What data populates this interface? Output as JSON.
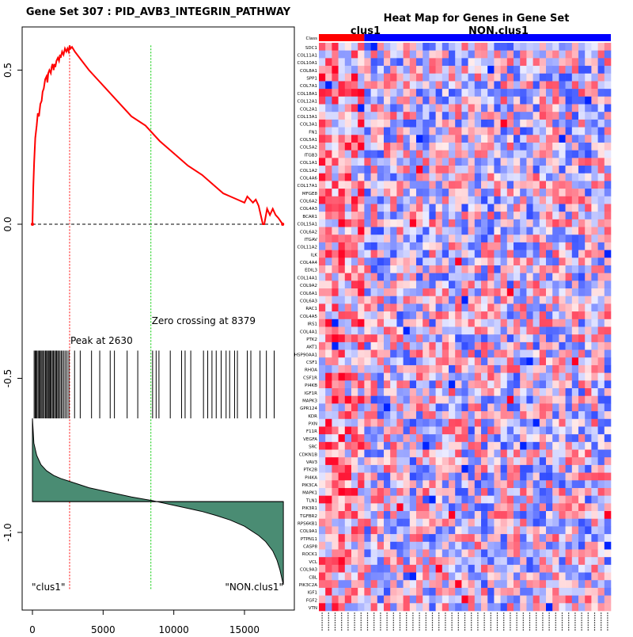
{
  "left_title": "Gene Set  307 : PID_AVB3_INTEGRIN_PATHWAY",
  "right_title": "Heat Map for Genes in Gene Set",
  "colors": {
    "es_line": "#ff0000",
    "zero_line": "#000000",
    "peak_line": "#ff0000",
    "zero_cross_line": "#00cc00",
    "ranked_fill": "#4a8c73",
    "clus1_bar": "#ff0000",
    "nonclus1_bar": "#0000ff"
  },
  "chart_data": [
    {
      "type": "line",
      "name": "enrichment-plot",
      "xlim": [
        0,
        17800
      ],
      "ylim": [
        -1.18,
        0.68
      ],
      "x_ticks": [
        0,
        5000,
        10000,
        15000
      ],
      "y_ticks": [
        0.5,
        0.0,
        -0.5,
        -1.0
      ],
      "y_tick_labels": [
        "0.5",
        "0.0",
        "-0.5",
        "-1.0"
      ],
      "es_curve": {
        "x": [
          0,
          60,
          120,
          200,
          300,
          380,
          460,
          560,
          650,
          720,
          800,
          900,
          1000,
          1060,
          1120,
          1200,
          1300,
          1360,
          1420,
          1500,
          1560,
          1620,
          1700,
          1800,
          1880,
          1950,
          2000,
          2100,
          2200,
          2300,
          2400,
          2480,
          2560,
          2630,
          2700,
          2800,
          3000,
          3500,
          4000,
          5000,
          6000,
          7000,
          8000,
          9000,
          10000,
          11000,
          12000,
          13000,
          13500,
          14000,
          14500,
          15000,
          15200,
          15400,
          15600,
          15800,
          16000,
          16100,
          16200,
          16300,
          16400,
          16600,
          16800,
          17000,
          17200,
          17400,
          17700
        ],
        "y": [
          0.0,
          0.12,
          0.2,
          0.28,
          0.32,
          0.36,
          0.35,
          0.39,
          0.4,
          0.43,
          0.44,
          0.47,
          0.48,
          0.46,
          0.49,
          0.5,
          0.49,
          0.51,
          0.52,
          0.5,
          0.52,
          0.51,
          0.53,
          0.54,
          0.53,
          0.55,
          0.54,
          0.56,
          0.55,
          0.57,
          0.56,
          0.57,
          0.56,
          0.58,
          0.57,
          0.575,
          0.56,
          0.53,
          0.5,
          0.45,
          0.4,
          0.35,
          0.32,
          0.27,
          0.23,
          0.19,
          0.16,
          0.12,
          0.1,
          0.09,
          0.08,
          0.07,
          0.09,
          0.08,
          0.07,
          0.08,
          0.06,
          0.04,
          0.02,
          0.0,
          0.0,
          0.05,
          0.03,
          0.05,
          0.03,
          0.02,
          0.0
        ]
      },
      "peak": {
        "x": 2630,
        "label": "Peak at 2630"
      },
      "zero_crossing": {
        "x": 8379,
        "label": "Zero crossing at 8379"
      },
      "hits": [
        120,
        190,
        250,
        320,
        400,
        470,
        540,
        610,
        680,
        760,
        840,
        920,
        990,
        1060,
        1130,
        1190,
        1260,
        1330,
        1410,
        1480,
        1560,
        1640,
        1710,
        1790,
        1860,
        1950,
        2040,
        2130,
        2230,
        2340,
        2450,
        2580,
        2980,
        3380,
        4180,
        4760,
        5500,
        5800,
        6700,
        7450,
        8500,
        8750,
        8950,
        9750,
        10550,
        10800,
        11200,
        12100,
        12400,
        12700,
        13000,
        13350,
        13700,
        13950,
        14300,
        14500,
        15200,
        15450,
        16100,
        16550,
        17100
      ],
      "ranked_metric": {
        "x": [
          0,
          100,
          300,
          600,
          1000,
          1500,
          2000,
          3000,
          4000,
          5000,
          6000,
          7000,
          8000,
          8379,
          9000,
          10000,
          11000,
          12000,
          13000,
          14000,
          15000,
          16000,
          16500,
          17000,
          17300,
          17500,
          17650,
          17750
        ],
        "y": [
          -0.63,
          -0.71,
          -0.75,
          -0.78,
          -0.8,
          -0.815,
          -0.825,
          -0.84,
          -0.855,
          -0.865,
          -0.875,
          -0.885,
          -0.893,
          -0.896,
          -0.902,
          -0.912,
          -0.922,
          -0.932,
          -0.945,
          -0.96,
          -0.98,
          -1.01,
          -1.03,
          -1.06,
          -1.09,
          -1.12,
          -1.15,
          -1.17
        ]
      },
      "baseline_y": -0.9,
      "corner_labels": {
        "left": "\"clus1\"",
        "right": "\"NON.clus1\""
      }
    },
    {
      "type": "heatmap",
      "name": "gene-heatmap",
      "class_row_label": "Class",
      "group_labels": {
        "left": "clus1",
        "right": "NON.clus1"
      },
      "clus1_columns": 7,
      "total_columns": 45,
      "genes": [
        "SDC1",
        "COL11A1",
        "COL10A1",
        "COL8A1",
        "SPP1",
        "COL7A1",
        "COL18A1",
        "COL12A1",
        "COL2A1",
        "COL13A1",
        "COL3A1",
        "FN1",
        "COL5A1",
        "COL5A2",
        "ITGB3",
        "COL1A1",
        "COL1A2",
        "COL4A6",
        "COL17A1",
        "MFGE8",
        "COL6A2",
        "COL4A3",
        "BCAR1",
        "COL15A1",
        "COL6A2",
        "ITGAV",
        "COL11A2",
        "ILK",
        "COL4A4",
        "EDIL3",
        "COL14A1",
        "COL9A2",
        "COL6A1",
        "COL6A3",
        "RAC1",
        "COL4A5",
        "IRS1",
        "COL4A1",
        "PTK2",
        "AKT1",
        "HSP90AA1",
        "CSF1",
        "RHOA",
        "CSF1R",
        "PI4KB",
        "IGF1R",
        "MAPK3",
        "GPR124",
        "KDR",
        "PXN",
        "F11R",
        "VEGFA",
        "SRC",
        "CDKN1B",
        "VAV3",
        "PTK2B",
        "PI4KA",
        "PIK3CA",
        "MAPK1",
        "TLN1",
        "PIK3R1",
        "TGFBR2",
        "RPS6KB1",
        "COL9A1",
        "PTPN11",
        "CASP8",
        "ROCK1",
        "VCL",
        "COL9A3",
        "CBL",
        "PIK3C2A",
        "IGF1",
        "FGF2",
        "VTN"
      ]
    }
  ]
}
